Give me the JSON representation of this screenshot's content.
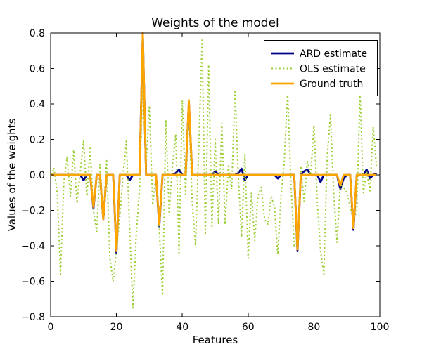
{
  "figure": {
    "title": "Weights of the model",
    "xlabel": "Features",
    "ylabel": "Values of the weights",
    "background": "#ffffff",
    "spine_color": "#000000"
  },
  "legend": {
    "position": "upper-right",
    "border_color": "#000000",
    "items": [
      {
        "label": "ARD estimate",
        "color": "#00008B",
        "style": "solid"
      },
      {
        "label": "OLS estimate",
        "color": "#9ACD32",
        "style": "dotted"
      },
      {
        "label": "Ground truth",
        "color": "#FFA500",
        "style": "solid"
      }
    ]
  },
  "chart_data": {
    "type": "line",
    "title": "Weights of the model",
    "xlabel": "Features",
    "ylabel": "Values of the weights",
    "xlim": [
      0,
      100
    ],
    "ylim": [
      -0.8,
      0.8
    ],
    "xticks": [
      0,
      20,
      40,
      60,
      80,
      100
    ],
    "xtick_labels": [
      "0",
      "20",
      "40",
      "60",
      "80",
      "100"
    ],
    "ytick_values": [
      0.8,
      0.6,
      0.4,
      0.2,
      0.0,
      -0.2,
      -0.4,
      -0.6,
      -0.8
    ],
    "ytick_labels": [
      "0.8",
      "0.6",
      "0.4",
      "0.2",
      "0.0",
      "−0.2",
      "−0.4",
      "−0.6",
      "−0.8"
    ],
    "grid": false,
    "legend_position": "upper right",
    "x_start": 0,
    "x_step": 1,
    "series": [
      {
        "name": "ARD estimate",
        "color": "#00008B",
        "linestyle": "solid",
        "linewidth": 2.8,
        "values": [
          0,
          0,
          0,
          0,
          0,
          0,
          0,
          0,
          0,
          0,
          -0.03,
          0,
          0,
          -0.19,
          0,
          0,
          -0.25,
          0,
          0,
          0,
          -0.44,
          0,
          0,
          0,
          -0.03,
          0,
          0,
          0,
          0.79,
          0,
          0,
          0,
          0,
          -0.29,
          0,
          0,
          0,
          0,
          0.01,
          0.03,
          0,
          0,
          0.41,
          0,
          0,
          0,
          0,
          0,
          0,
          0,
          0.02,
          0,
          0,
          0,
          0,
          0,
          0,
          0.01,
          0.035,
          -0.03,
          0,
          0,
          0,
          0,
          0,
          0,
          0,
          0,
          0,
          -0.02,
          0,
          0,
          0,
          0,
          0,
          -0.43,
          0,
          0.02,
          0.03,
          0,
          0,
          0,
          -0.04,
          0,
          0,
          0,
          0,
          0,
          -0.08,
          -0.02,
          0,
          0,
          -0.31,
          0,
          0,
          0,
          0.03,
          -0.02,
          0,
          0.01
        ]
      },
      {
        "name": "OLS estimate",
        "color": "#9ACD32",
        "linestyle": "dotted",
        "linewidth": 2,
        "values": [
          -0.02,
          0.04,
          -0.1,
          -0.56,
          -0.04,
          0.1,
          -0.12,
          0.14,
          -0.16,
          0.02,
          0.19,
          -0.12,
          0.15,
          -0.2,
          -0.32,
          0.06,
          -0.24,
          0.08,
          -0.47,
          -0.6,
          -0.43,
          -0.24,
          0.0,
          0.19,
          -0.3,
          -0.75,
          -0.34,
          -0.08,
          0.5,
          0.05,
          0.39,
          -0.17,
          0.0,
          -0.3,
          -0.68,
          0.31,
          -0.21,
          0.05,
          0.23,
          -0.44,
          0.42,
          -0.11,
          0.35,
          -0.15,
          -0.4,
          0.15,
          0.76,
          -0.33,
          0.62,
          -0.29,
          0.2,
          -0.28,
          0.29,
          -0.28,
          0.05,
          -0.08,
          0.48,
          0.0,
          -0.35,
          0.12,
          -0.47,
          -0.1,
          -0.37,
          -0.12,
          -0.07,
          -0.25,
          -0.28,
          -0.12,
          -0.18,
          -0.45,
          -0.12,
          0.08,
          0.47,
          -0.05,
          -0.4,
          -0.38,
          0.05,
          -0.15,
          0.08,
          0.0,
          0.28,
          -0.15,
          -0.43,
          -0.56,
          0.1,
          0.34,
          -0.1,
          -0.38,
          -0.05,
          -0.07,
          -0.1,
          -0.18,
          -0.25,
          -0.21,
          0.47,
          -0.1,
          0.02,
          -0.09,
          0.27,
          0.05
        ]
      },
      {
        "name": "Ground truth",
        "color": "#FFA500",
        "linestyle": "solid",
        "linewidth": 2.8,
        "values": [
          0,
          0,
          0,
          0,
          0,
          0,
          0,
          0,
          0,
          0,
          0,
          0,
          0,
          -0.18,
          0,
          0,
          -0.25,
          0,
          0,
          0,
          -0.43,
          0,
          0,
          0,
          0,
          0,
          0,
          0,
          0.8,
          0,
          0,
          0,
          0,
          -0.28,
          0,
          0,
          0,
          0,
          0,
          0,
          0,
          0,
          0.42,
          0,
          0,
          0,
          0,
          0,
          0,
          0,
          0,
          0,
          0,
          0,
          0,
          0,
          0,
          0,
          0,
          0,
          0,
          0,
          0,
          0,
          0,
          0,
          0,
          0,
          0,
          0,
          0,
          0,
          0,
          0,
          0,
          -0.42,
          0,
          0,
          0,
          0,
          0,
          0,
          0,
          0,
          0,
          0,
          0,
          0,
          -0.06,
          0,
          0,
          0,
          -0.3,
          0,
          0,
          0,
          0,
          0,
          0,
          0
        ]
      }
    ]
  }
}
